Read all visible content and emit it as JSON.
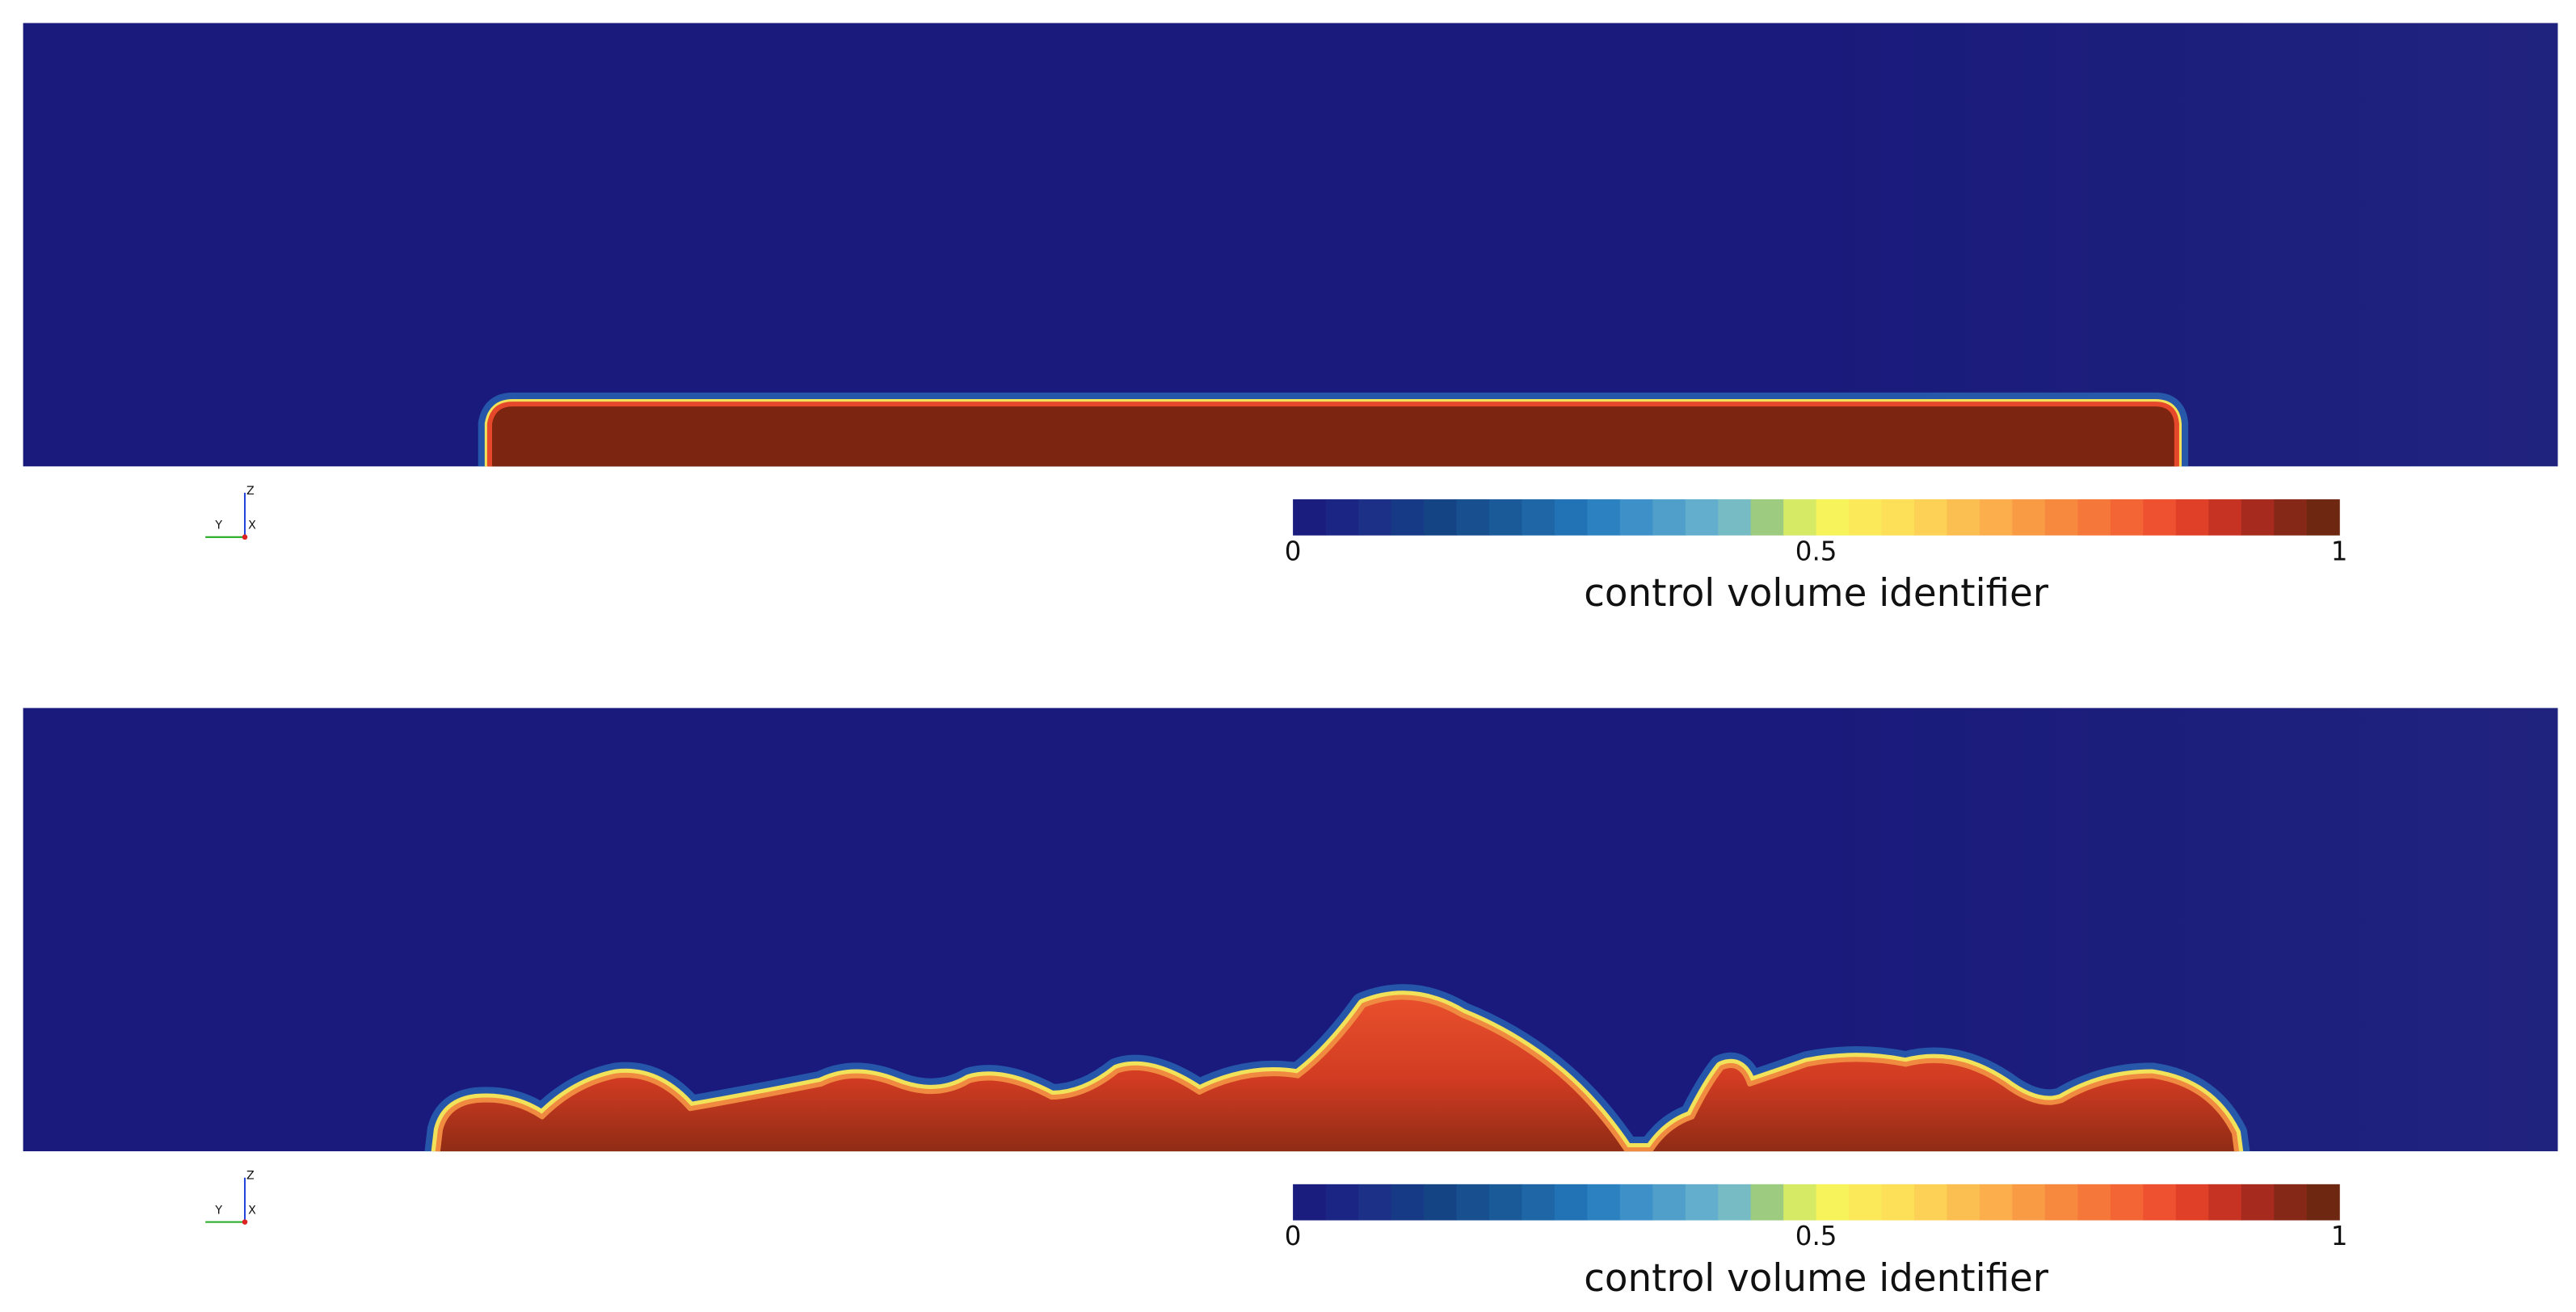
{
  "colormap": [
    "#1a1c7e",
    "#1b2584",
    "#1c3088",
    "#173a86",
    "#154485",
    "#174f8f",
    "#1a5a99",
    "#1e66a6",
    "#2272b6",
    "#2c81c0",
    "#3d91c8",
    "#509fcb",
    "#62aecc",
    "#77bcc4",
    "#9dcc80",
    "#d6ea66",
    "#f6f45a",
    "#fbe95a",
    "#fde058",
    "#fcd155",
    "#fbbe50",
    "#fbae4b",
    "#f99a45",
    "#f7893f",
    "#f5773a",
    "#f36535",
    "#ee5130",
    "#e03f28",
    "#c73323",
    "#a62a1d",
    "#862818",
    "#6e2812"
  ],
  "panels": [
    {
      "axes": {
        "z": "Z",
        "y": "Y",
        "x": "X"
      },
      "colorbar": {
        "title": "control volume identifier",
        "range": [
          0,
          1
        ],
        "ticks": [
          0,
          0.5,
          1
        ]
      }
    },
    {
      "axes": {
        "z": "Z",
        "y": "Y",
        "x": "X"
      },
      "colorbar": {
        "title": "control volume identifier",
        "range": [
          0,
          1
        ],
        "ticks": [
          0,
          0.5,
          1
        ]
      }
    }
  ]
}
